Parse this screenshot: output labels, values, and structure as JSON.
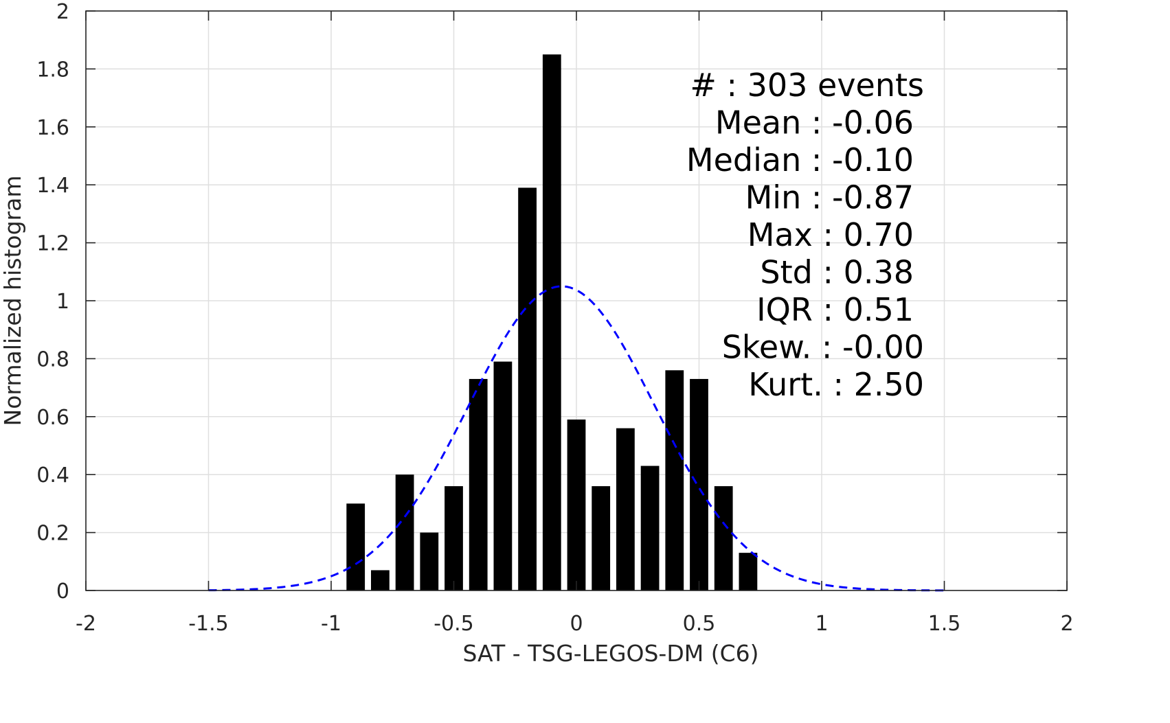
{
  "chart_data": {
    "type": "bar",
    "xlabel": "SAT - TSG-LEGOS-DM (C6)",
    "ylabel": "Normalized histogram",
    "xlim": [
      -2,
      2
    ],
    "ylim": [
      0,
      2
    ],
    "xticks": [
      "-2",
      "-1.5",
      "-1",
      "-0.5",
      "0",
      "0.5",
      "1",
      "1.5",
      "2"
    ],
    "yticks": [
      "0",
      "0.2",
      "0.4",
      "0.6",
      "0.8",
      "1",
      "1.2",
      "1.4",
      "1.6",
      "1.8",
      "2"
    ],
    "grid": true,
    "bar_color": "#000000",
    "fit_color": "#0000ff",
    "bars": {
      "x": [
        -0.9,
        -0.8,
        -0.7,
        -0.6,
        -0.5,
        -0.4,
        -0.3,
        -0.2,
        -0.1,
        0.0,
        0.1,
        0.2,
        0.3,
        0.4,
        0.5,
        0.6,
        0.7
      ],
      "values": [
        0.3,
        0.07,
        0.4,
        0.2,
        0.36,
        0.73,
        0.79,
        1.39,
        1.85,
        0.59,
        0.36,
        0.56,
        0.43,
        0.76,
        0.73,
        0.36,
        0.13
      ],
      "width": 0.075
    },
    "fit": {
      "type": "normal",
      "mean": -0.06,
      "std": 0.38,
      "x_range": [
        -1.5,
        1.5
      ]
    },
    "stats": [
      {
        "label": "#  : 303 events",
        "anchor": "1345"
      },
      {
        "label": "Mean : -0.06",
        "anchor": "1330"
      },
      {
        "label": "Median : -0.10",
        "anchor": "1330"
      },
      {
        "label": "Min : -0.87",
        "anchor": "1330"
      },
      {
        "label": "Max : 0.70",
        "anchor": "1330"
      },
      {
        "label": "Std : 0.38",
        "anchor": "1330"
      },
      {
        "label": "IQR : 0.51",
        "anchor": "1330"
      },
      {
        "label": "Skew. : -0.00",
        "anchor": "1345"
      },
      {
        "label": "Kurt. : 2.50",
        "anchor": "1345"
      }
    ]
  }
}
